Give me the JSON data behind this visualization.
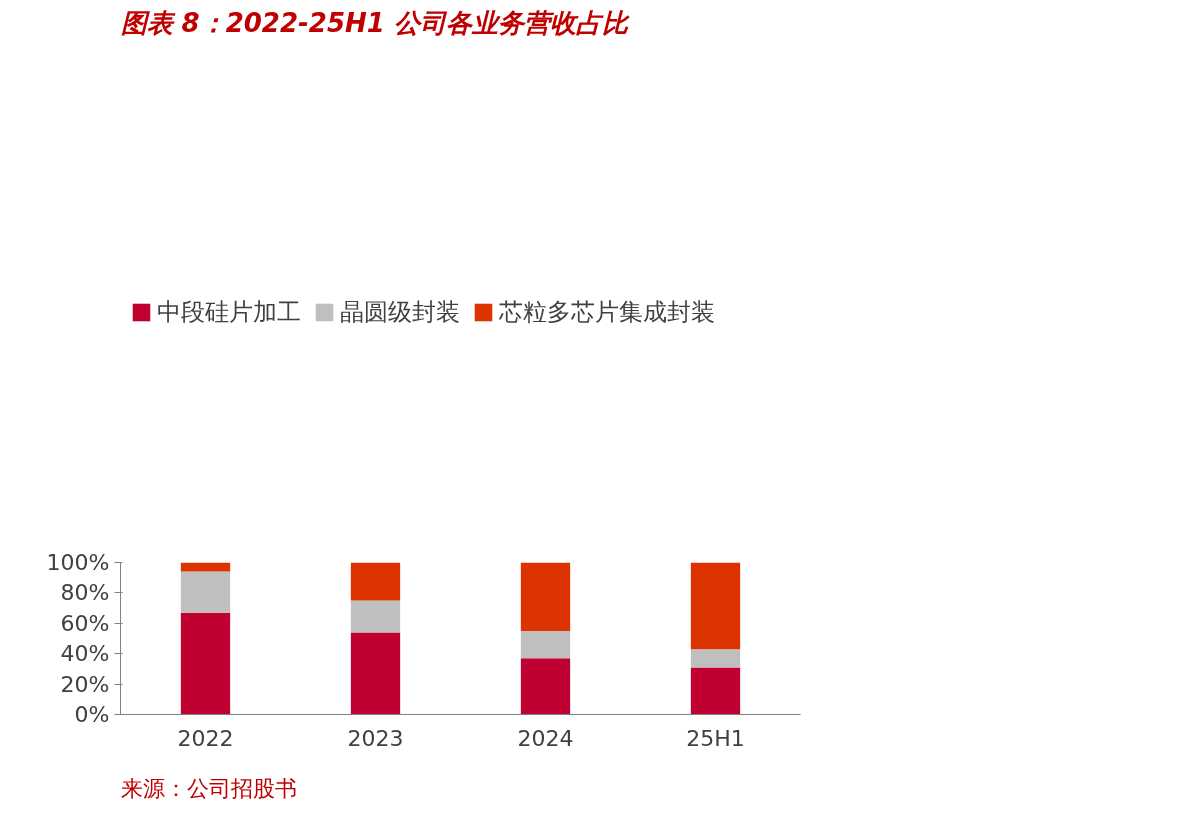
{
  "chart_data": {
    "type": "bar",
    "title": "图表 8：2022-25H1 公司各业务营收占比",
    "stacked": true,
    "categories": [
      "2022",
      "2023",
      "2024",
      "25H1"
    ],
    "series": [
      {
        "name": "中段硅片加工",
        "color": "#c00030",
        "values": [
          67,
          54,
          37,
          31
        ]
      },
      {
        "name": "晶圆级封装",
        "color": "#bfbfbf",
        "values": [
          27,
          21,
          18,
          12
        ]
      },
      {
        "name": "芯粒多芯片集成封装",
        "color": "#dd3300",
        "values": [
          6,
          25,
          45,
          57
        ]
      }
    ],
    "ylim": [
      0,
      100
    ],
    "yticks": [
      {
        "value": 0,
        "label": "0%"
      },
      {
        "value": 20,
        "label": "20%"
      },
      {
        "value": 40,
        "label": "40%"
      },
      {
        "value": 60,
        "label": "60%"
      },
      {
        "value": 80,
        "label": "80%"
      },
      {
        "value": 100,
        "label": "100%"
      }
    ],
    "grid": false,
    "legend": "top",
    "annotations": [
      "来源：公司招股书"
    ]
  }
}
